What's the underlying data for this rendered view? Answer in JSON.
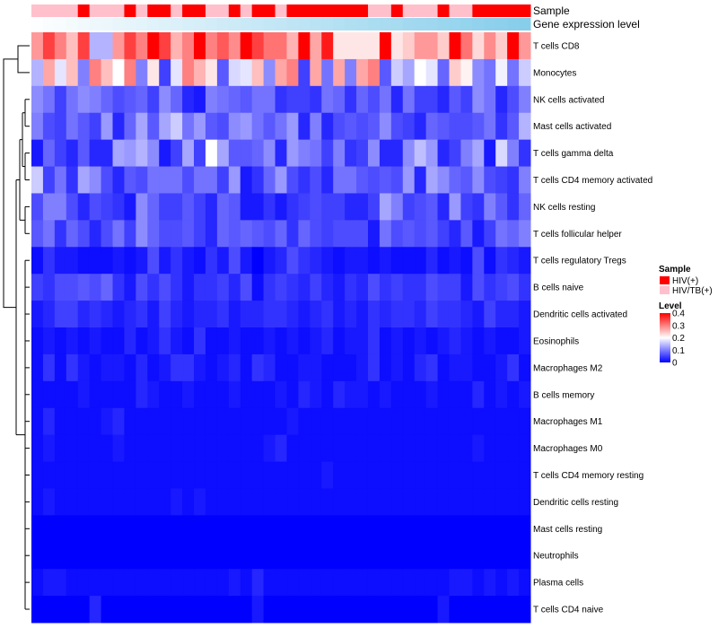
{
  "chart_data": {
    "type": "heatmap",
    "annotation_titles": [
      "Sample",
      "Gene expression level"
    ],
    "rows": [
      "T cells CD8",
      "Monocytes",
      "NK cells activated",
      "Mast cells activated",
      "T cells gamma delta",
      "T cells CD4 memory activated",
      "NK cells resting",
      "T cells follicular helper",
      "T cells regulatory  Tregs",
      "B cells naive",
      "Dendritic cells activated",
      "Eosinophils",
      "Macrophages M2",
      "B cells memory",
      "Macrophages M1",
      "Macrophages M0",
      "T cells CD4 memory resting",
      "Dendritic cells resting",
      "Mast cells resting",
      "Neutrophils",
      "Plasma cells",
      "T cells CD4 naive"
    ],
    "sample_groups": [
      "HIV/TB(+)",
      "HIV/TB(+)",
      "HIV/TB(+)",
      "HIV/TB(+)",
      "HIV(+)",
      "HIV/TB(+)",
      "HIV/TB(+)",
      "HIV/TB(+)",
      "HIV(+)",
      "HIV/TB(+)",
      "HIV(+)",
      "HIV(+)",
      "HIV/TB(+)",
      "HIV(+)",
      "HIV(+)",
      "HIV/TB(+)",
      "HIV/TB(+)",
      "HIV(+)",
      "HIV/TB(+)",
      "HIV(+)",
      "HIV(+)",
      "HIV/TB(+)",
      "HIV(+)",
      "HIV(+)",
      "HIV(+)",
      "HIV(+)",
      "HIV(+)",
      "HIV(+)",
      "HIV(+)",
      "HIV/TB(+)",
      "HIV/TB(+)",
      "HIV(+)",
      "HIV/TB(+)",
      "HIV/TB(+)",
      "HIV/TB(+)",
      "HIV(+)",
      "HIV/TB(+)",
      "HIV/TB(+)",
      "HIV(+)",
      "HIV(+)",
      "HIV(+)",
      "HIV(+)",
      "HIV(+)"
    ],
    "expression_levels": [
      0.02,
      0.05,
      0.07,
      0.09,
      0.12,
      0.14,
      0.16,
      0.19,
      0.21,
      0.23,
      0.26,
      0.28,
      0.3,
      0.33,
      0.35,
      0.37,
      0.4,
      0.42,
      0.44,
      0.47,
      0.49,
      0.51,
      0.53,
      0.56,
      0.58,
      0.6,
      0.63,
      0.65,
      0.67,
      0.7,
      0.72,
      0.74,
      0.77,
      0.79,
      0.81,
      0.84,
      0.86,
      0.88,
      0.91,
      0.93,
      0.95,
      0.98,
      1.0
    ],
    "values": [
      [
        0.28,
        0.35,
        0.3,
        0.25,
        0.35,
        0.14,
        0.14,
        0.28,
        0.35,
        0.3,
        0.4,
        0.35,
        0.26,
        0.3,
        0.4,
        0.3,
        0.33,
        0.29,
        0.4,
        0.35,
        0.31,
        0.31,
        0.26,
        0.4,
        0.27,
        0.38,
        0.22,
        0.22,
        0.22,
        0.22,
        0.4,
        0.22,
        0.24,
        0.28,
        0.28,
        0.24,
        0.4,
        0.31,
        0.23,
        0.29,
        0.24,
        0.4,
        0.28
      ],
      [
        0.14,
        0.27,
        0.18,
        0.25,
        0.1,
        0.3,
        0.25,
        0.2,
        0.3,
        0.1,
        0.22,
        0.05,
        0.18,
        0.3,
        0.26,
        0.22,
        0.07,
        0.17,
        0.18,
        0.25,
        0.11,
        0.27,
        0.3,
        0.05,
        0.27,
        0.09,
        0.27,
        0.1,
        0.27,
        0.3,
        0.07,
        0.16,
        0.13,
        0.2,
        0.18,
        0.08,
        0.24,
        0.21,
        0.11,
        0.09,
        0.19,
        0.09,
        0.16
      ],
      [
        0.11,
        0.09,
        0.05,
        0.09,
        0.11,
        0.1,
        0.08,
        0.06,
        0.07,
        0.08,
        0.05,
        0.11,
        0.08,
        0.03,
        0.02,
        0.1,
        0.09,
        0.08,
        0.07,
        0.09,
        0.09,
        0.04,
        0.05,
        0.05,
        0.04,
        0.09,
        0.08,
        0.04,
        0.08,
        0.06,
        0.09,
        0.03,
        0.09,
        0.05,
        0.05,
        0.03,
        0.07,
        0.05,
        0.11,
        0.09,
        0.03,
        0.06,
        0.1
      ],
      [
        0.1,
        0.06,
        0.05,
        0.09,
        0.07,
        0.05,
        0.12,
        0.03,
        0.08,
        0.13,
        0.07,
        0.13,
        0.16,
        0.09,
        0.12,
        0.07,
        0.06,
        0.11,
        0.12,
        0.09,
        0.07,
        0.09,
        0.12,
        0.03,
        0.1,
        0.03,
        0.06,
        0.07,
        0.06,
        0.07,
        0.11,
        0.06,
        0.05,
        0.03,
        0.08,
        0.07,
        0.06,
        0.06,
        0.07,
        0.09,
        0.04,
        0.07,
        0.14
      ],
      [
        0.02,
        0.08,
        0.05,
        0.03,
        0.07,
        0.03,
        0.03,
        0.13,
        0.12,
        0.14,
        0.11,
        0.02,
        0.05,
        0.13,
        0.05,
        0.2,
        0.13,
        0.07,
        0.07,
        0.08,
        0.11,
        0.03,
        0.12,
        0.1,
        0.09,
        0.05,
        0.1,
        0.04,
        0.05,
        0.11,
        0.03,
        0.03,
        0.11,
        0.15,
        0.12,
        0.03,
        0.05,
        0.1,
        0.13,
        0.02,
        0.17,
        0.1,
        0.04
      ],
      [
        0.16,
        0.05,
        0.09,
        0.04,
        0.13,
        0.11,
        0.06,
        0.03,
        0.07,
        0.06,
        0.09,
        0.09,
        0.09,
        0.06,
        0.09,
        0.09,
        0.05,
        0.12,
        0.02,
        0.04,
        0.08,
        0.12,
        0.06,
        0.04,
        0.06,
        0.03,
        0.09,
        0.09,
        0.07,
        0.06,
        0.07,
        0.06,
        0.12,
        0.03,
        0.13,
        0.11,
        0.08,
        0.07,
        0.11,
        0.06,
        0.05,
        0.04,
        0.1
      ],
      [
        0.06,
        0.1,
        0.1,
        0.06,
        0.03,
        0.06,
        0.05,
        0.04,
        0.02,
        0.11,
        0.08,
        0.05,
        0.05,
        0.07,
        0.05,
        0.03,
        0.08,
        0.07,
        0.02,
        0.02,
        0.04,
        0.02,
        0.04,
        0.05,
        0.06,
        0.05,
        0.05,
        0.03,
        0.03,
        0.05,
        0.13,
        0.1,
        0.05,
        0.06,
        0.07,
        0.03,
        0.12,
        0.05,
        0.04,
        0.1,
        0.07,
        0.04,
        0.08
      ],
      [
        0.07,
        0.09,
        0.04,
        0.08,
        0.06,
        0.03,
        0.06,
        0.09,
        0.05,
        0.11,
        0.08,
        0.06,
        0.06,
        0.07,
        0.05,
        0.03,
        0.08,
        0.07,
        0.08,
        0.07,
        0.06,
        0.08,
        0.04,
        0.08,
        0.06,
        0.05,
        0.06,
        0.06,
        0.06,
        0.02,
        0.09,
        0.06,
        0.07,
        0.06,
        0.07,
        0.05,
        0.03,
        0.07,
        0.02,
        0.05,
        0.09,
        0.08,
        0.1
      ],
      [
        0.01,
        0.04,
        0.02,
        0.02,
        0.01,
        0.01,
        0.01,
        0.02,
        0.01,
        0.02,
        0.06,
        0.02,
        0.04,
        0.02,
        0.01,
        0.04,
        0.02,
        0.06,
        0.02,
        0.0,
        0.02,
        0.03,
        0.06,
        0.04,
        0.03,
        0.02,
        0.01,
        0.02,
        0.02,
        0.01,
        0.02,
        0.01,
        0.01,
        0.01,
        0.03,
        0.01,
        0.02,
        0.01,
        0.06,
        0.01,
        0.04,
        0.03,
        0.02
      ],
      [
        0.05,
        0.04,
        0.06,
        0.06,
        0.07,
        0.06,
        0.08,
        0.04,
        0.02,
        0.06,
        0.04,
        0.06,
        0.04,
        0.02,
        0.04,
        0.04,
        0.05,
        0.03,
        0.06,
        0.01,
        0.04,
        0.05,
        0.04,
        0.03,
        0.05,
        0.03,
        0.02,
        0.04,
        0.03,
        0.06,
        0.04,
        0.05,
        0.04,
        0.04,
        0.06,
        0.05,
        0.05,
        0.02,
        0.06,
        0.04,
        0.05,
        0.06,
        0.04
      ],
      [
        0.02,
        0.03,
        0.05,
        0.05,
        0.03,
        0.04,
        0.03,
        0.02,
        0.03,
        0.04,
        0.02,
        0.05,
        0.03,
        0.02,
        0.03,
        0.03,
        0.04,
        0.02,
        0.03,
        0.03,
        0.04,
        0.04,
        0.03,
        0.02,
        0.03,
        0.04,
        0.02,
        0.03,
        0.02,
        0.04,
        0.03,
        0.04,
        0.04,
        0.03,
        0.05,
        0.04,
        0.04,
        0.03,
        0.02,
        0.05,
        0.03,
        0.03,
        0.02
      ],
      [
        0.01,
        0.02,
        0.01,
        0.02,
        0.01,
        0.02,
        0.01,
        0.01,
        0.03,
        0.01,
        0.02,
        0.04,
        0.02,
        0.01,
        0.04,
        0.01,
        0.01,
        0.02,
        0.01,
        0.01,
        0.02,
        0.01,
        0.02,
        0.01,
        0.02,
        0.03,
        0.01,
        0.02,
        0.02,
        0.04,
        0.01,
        0.02,
        0.01,
        0.02,
        0.01,
        0.02,
        0.03,
        0.02,
        0.01,
        0.02,
        0.01,
        0.01,
        0.02
      ],
      [
        0.01,
        0.04,
        0.01,
        0.04,
        0.02,
        0.01,
        0.02,
        0.02,
        0.01,
        0.03,
        0.01,
        0.02,
        0.04,
        0.04,
        0.02,
        0.01,
        0.02,
        0.03,
        0.01,
        0.04,
        0.03,
        0.01,
        0.01,
        0.02,
        0.02,
        0.01,
        0.01,
        0.01,
        0.02,
        0.04,
        0.01,
        0.02,
        0.01,
        0.03,
        0.04,
        0.01,
        0.02,
        0.02,
        0.01,
        0.01,
        0.02,
        0.04,
        0.01
      ],
      [
        0.01,
        0.01,
        0.01,
        0.01,
        0.02,
        0.01,
        0.01,
        0.01,
        0.01,
        0.03,
        0.02,
        0.01,
        0.01,
        0.02,
        0.01,
        0.01,
        0.01,
        0.02,
        0.01,
        0.01,
        0.01,
        0.02,
        0.01,
        0.03,
        0.02,
        0.01,
        0.03,
        0.02,
        0.02,
        0.01,
        0.02,
        0.01,
        0.01,
        0.01,
        0.02,
        0.01,
        0.01,
        0.01,
        0.03,
        0.01,
        0.02,
        0.01,
        0.02
      ],
      [
        0.01,
        0.03,
        0.01,
        0.01,
        0.01,
        0.01,
        0.02,
        0.03,
        0.01,
        0.01,
        0.01,
        0.01,
        0.01,
        0.01,
        0.01,
        0.01,
        0.01,
        0.01,
        0.01,
        0.01,
        0.01,
        0.01,
        0.02,
        0.01,
        0.01,
        0.01,
        0.01,
        0.01,
        0.01,
        0.01,
        0.01,
        0.01,
        0.01,
        0.01,
        0.01,
        0.01,
        0.01,
        0.01,
        0.01,
        0.01,
        0.01,
        0.01,
        0.01
      ],
      [
        0.01,
        0.02,
        0.01,
        0.01,
        0.01,
        0.01,
        0.01,
        0.02,
        0.01,
        0.01,
        0.01,
        0.01,
        0.01,
        0.01,
        0.01,
        0.01,
        0.01,
        0.01,
        0.01,
        0.01,
        0.02,
        0.03,
        0.01,
        0.01,
        0.01,
        0.01,
        0.01,
        0.01,
        0.01,
        0.01,
        0.01,
        0.01,
        0.01,
        0.01,
        0.01,
        0.01,
        0.01,
        0.01,
        0.02,
        0.01,
        0.01,
        0.01,
        0.01
      ],
      [
        0.01,
        0.01,
        0.01,
        0.01,
        0.01,
        0.01,
        0.01,
        0.01,
        0.01,
        0.01,
        0.01,
        0.01,
        0.01,
        0.01,
        0.01,
        0.01,
        0.01,
        0.01,
        0.01,
        0.01,
        0.01,
        0.01,
        0.01,
        0.01,
        0.01,
        0.02,
        0.01,
        0.01,
        0.01,
        0.01,
        0.01,
        0.01,
        0.01,
        0.01,
        0.01,
        0.01,
        0.01,
        0.01,
        0.01,
        0.01,
        0.01,
        0.01,
        0.01
      ],
      [
        0.01,
        0.02,
        0.01,
        0.01,
        0.01,
        0.01,
        0.01,
        0.01,
        0.01,
        0.01,
        0.01,
        0.01,
        0.02,
        0.01,
        0.02,
        0.01,
        0.01,
        0.01,
        0.01,
        0.01,
        0.01,
        0.01,
        0.01,
        0.01,
        0.01,
        0.01,
        0.01,
        0.01,
        0.01,
        0.01,
        0.01,
        0.01,
        0.01,
        0.01,
        0.01,
        0.01,
        0.01,
        0.01,
        0.01,
        0.01,
        0.01,
        0.01,
        0.01
      ],
      [
        0.0,
        0.0,
        0.0,
        0.0,
        0.0,
        0.0,
        0.0,
        0.0,
        0.0,
        0.0,
        0.0,
        0.0,
        0.0,
        0.0,
        0.0,
        0.0,
        0.0,
        0.0,
        0.0,
        0.0,
        0.0,
        0.0,
        0.0,
        0.0,
        0.0,
        0.0,
        0.0,
        0.0,
        0.0,
        0.0,
        0.0,
        0.0,
        0.0,
        0.0,
        0.0,
        0.0,
        0.0,
        0.0,
        0.0,
        0.0,
        0.0,
        0.0,
        0.0
      ],
      [
        0.0,
        0.0,
        0.0,
        0.0,
        0.0,
        0.0,
        0.0,
        0.0,
        0.0,
        0.0,
        0.0,
        0.0,
        0.0,
        0.0,
        0.0,
        0.0,
        0.0,
        0.0,
        0.0,
        0.0,
        0.0,
        0.0,
        0.0,
        0.0,
        0.0,
        0.0,
        0.0,
        0.0,
        0.0,
        0.0,
        0.0,
        0.0,
        0.0,
        0.0,
        0.0,
        0.0,
        0.0,
        0.0,
        0.0,
        0.0,
        0.0,
        0.0,
        0.0
      ],
      [
        0.01,
        0.02,
        0.02,
        0.01,
        0.01,
        0.01,
        0.01,
        0.01,
        0.01,
        0.01,
        0.01,
        0.01,
        0.01,
        0.01,
        0.01,
        0.01,
        0.01,
        0.02,
        0.01,
        0.03,
        0.01,
        0.01,
        0.01,
        0.01,
        0.01,
        0.01,
        0.01,
        0.01,
        0.01,
        0.01,
        0.01,
        0.01,
        0.01,
        0.01,
        0.01,
        0.01,
        0.02,
        0.02,
        0.01,
        0.02,
        0.01,
        0.02,
        0.01
      ],
      [
        0.0,
        0.0,
        0.0,
        0.0,
        0.0,
        0.03,
        0.0,
        0.0,
        0.0,
        0.0,
        0.0,
        0.0,
        0.0,
        0.0,
        0.0,
        0.0,
        0.0,
        0.0,
        0.0,
        0.02,
        0.0,
        0.0,
        0.0,
        0.0,
        0.0,
        0.0,
        0.0,
        0.0,
        0.0,
        0.0,
        0.0,
        0.0,
        0.0,
        0.0,
        0.0,
        0.02,
        0.0,
        0.0,
        0.0,
        0.0,
        0.0,
        0.0,
        0.0
      ]
    ],
    "legend_sample_title": "Sample",
    "legend_sample": [
      {
        "label": "HIV(+)",
        "color": "#ff0000"
      },
      {
        "label": "HIV/TB(+)",
        "color": "#ffc0cb"
      }
    ],
    "legend_level_title": "Level",
    "legend_level_ticks": [
      "0.4",
      "0.3",
      "0.2",
      "0.1",
      "0"
    ],
    "legend_level_tick_values": [
      0.4,
      0.3,
      0.2,
      0.1,
      0
    ],
    "color_scale": {
      "low": "#0000ff",
      "mid": "#ffffff",
      "high": "#ff0000",
      "domain": [
        0,
        0.2,
        0.4
      ]
    },
    "expression_bar_colors": {
      "low": "#ffffff",
      "high": "#87ceeb"
    }
  }
}
